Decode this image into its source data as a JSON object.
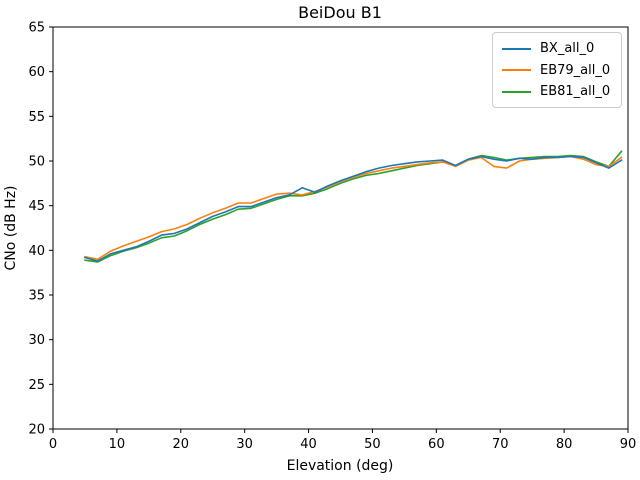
{
  "chart_data": {
    "type": "line",
    "title": "BeiDou B1",
    "xlabel": "Elevation (deg)",
    "ylabel": "CNo (dB Hz)",
    "xlim": [
      0,
      90
    ],
    "ylim": [
      20,
      65
    ],
    "x_ticks": [
      0,
      10,
      20,
      30,
      40,
      50,
      60,
      70,
      80,
      90
    ],
    "y_ticks": [
      20,
      25,
      30,
      35,
      40,
      45,
      50,
      55,
      60,
      65
    ],
    "grid": false,
    "legend_position": "upper right",
    "x": [
      5,
      7,
      9,
      11,
      13,
      15,
      17,
      19,
      21,
      23,
      25,
      27,
      29,
      31,
      33,
      35,
      37,
      39,
      41,
      43,
      45,
      47,
      49,
      51,
      53,
      55,
      57,
      59,
      61,
      63,
      65,
      67,
      69,
      71,
      73,
      75,
      77,
      79,
      81,
      83,
      85,
      87,
      89
    ],
    "series": [
      {
        "name": "BX_all_0",
        "color": "#1f77b4",
        "values": [
          39.2,
          38.8,
          39.6,
          40.0,
          40.4,
          41.0,
          41.7,
          41.9,
          42.4,
          43.1,
          43.8,
          44.3,
          44.9,
          44.9,
          45.4,
          45.9,
          46.2,
          47.0,
          46.5,
          47.2,
          47.8,
          48.3,
          48.8,
          49.2,
          49.5,
          49.7,
          49.9,
          50.0,
          50.1,
          49.5,
          50.2,
          50.5,
          50.2,
          50.0,
          50.3,
          50.2,
          50.4,
          50.4,
          50.5,
          50.4,
          49.8,
          49.2,
          50.1
        ]
      },
      {
        "name": "EB79_all_0",
        "color": "#ff7f0e",
        "values": [
          39.3,
          39.0,
          39.9,
          40.5,
          41.0,
          41.5,
          42.1,
          42.4,
          42.9,
          43.6,
          44.2,
          44.7,
          45.3,
          45.3,
          45.8,
          46.3,
          46.4,
          46.2,
          46.6,
          47.1,
          47.7,
          48.2,
          48.6,
          48.9,
          49.2,
          49.4,
          49.6,
          49.8,
          49.9,
          49.4,
          50.1,
          50.4,
          49.4,
          49.2,
          50.0,
          50.2,
          50.3,
          50.4,
          50.5,
          50.2,
          49.6,
          49.4,
          50.4
        ]
      },
      {
        "name": "EB81_all_0",
        "color": "#2ca02c",
        "values": [
          38.9,
          38.7,
          39.4,
          39.9,
          40.3,
          40.8,
          41.4,
          41.6,
          42.2,
          42.9,
          43.5,
          44.0,
          44.6,
          44.7,
          45.2,
          45.7,
          46.1,
          46.1,
          46.4,
          46.9,
          47.5,
          48.0,
          48.4,
          48.6,
          48.9,
          49.2,
          49.5,
          49.7,
          49.9,
          49.5,
          50.2,
          50.6,
          50.4,
          50.1,
          50.3,
          50.4,
          50.5,
          50.5,
          50.6,
          50.5,
          49.9,
          49.4,
          51.1
        ]
      }
    ]
  }
}
